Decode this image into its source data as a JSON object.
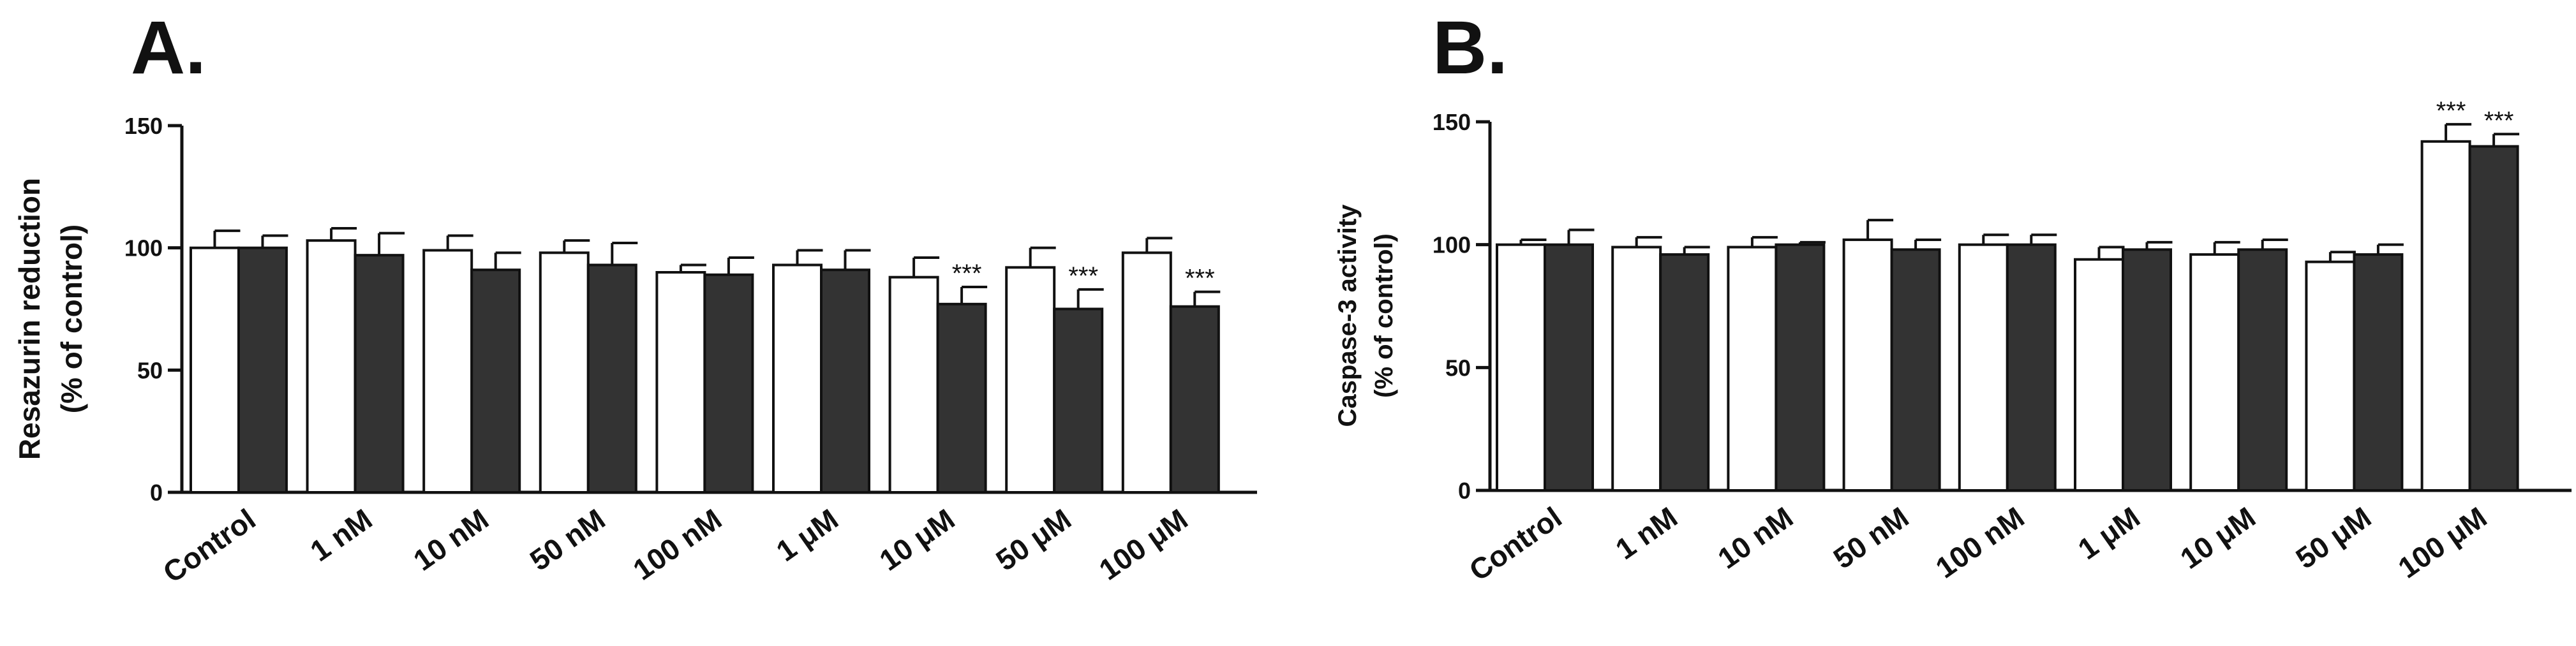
{
  "chart_data": [
    {
      "type": "bar",
      "panel_label": "A.",
      "ylabel": "Resazurin reduction",
      "ylabel2": "(% of control)",
      "ylim": [
        0,
        150
      ],
      "yticks": [
        "0",
        "50",
        "100",
        "150"
      ],
      "categories": [
        "Control",
        "1 nM",
        "10 nM",
        "50 nM",
        "100 nM",
        "1 μM",
        "10 μM",
        "50 μM",
        "100 μM"
      ],
      "series": [
        {
          "name": "white",
          "color": "#ffffff",
          "values": [
            100,
            103,
            99,
            98,
            90,
            93,
            88,
            92,
            98
          ],
          "errors": [
            7,
            5,
            6,
            5,
            3,
            6,
            8,
            8,
            6
          ],
          "significance": [
            "",
            "",
            "",
            "",
            "",
            "",
            "",
            "",
            ""
          ]
        },
        {
          "name": "dark",
          "color": "#333333",
          "values": [
            100,
            97,
            91,
            93,
            89,
            91,
            77,
            75,
            76
          ],
          "errors": [
            5,
            9,
            7,
            9,
            7,
            8,
            7,
            8,
            6
          ],
          "significance": [
            "",
            "",
            "",
            "",
            "",
            "",
            "***",
            "***",
            "***"
          ]
        }
      ]
    },
    {
      "type": "bar",
      "panel_label": "B.",
      "ylabel": "Caspase-3 activity",
      "ylabel2": "(% of control)",
      "ylim": [
        0,
        150
      ],
      "yticks": [
        "0",
        "50",
        "100",
        "150"
      ],
      "categories": [
        "Control",
        "1 nM",
        "10 nM",
        "50 nM",
        "100 nM",
        "1 μM",
        "10 μM",
        "50 μM",
        "100 μM"
      ],
      "series": [
        {
          "name": "white",
          "color": "#ffffff",
          "values": [
            100,
            99,
            99,
            102,
            100,
            94,
            96,
            93,
            142
          ],
          "errors": [
            2,
            4,
            4,
            8,
            4,
            5,
            5,
            4,
            7
          ],
          "significance": [
            "",
            "",
            "",
            "",
            "",
            "",
            "",
            "",
            "***"
          ]
        },
        {
          "name": "dark",
          "color": "#333333",
          "values": [
            100,
            96,
            100,
            98,
            100,
            98,
            98,
            96,
            140
          ],
          "errors": [
            6,
            3,
            1,
            4,
            4,
            3,
            4,
            4,
            5
          ],
          "significance": [
            "",
            "",
            "",
            "",
            "",
            "",
            "",
            "",
            "***"
          ]
        }
      ]
    }
  ]
}
